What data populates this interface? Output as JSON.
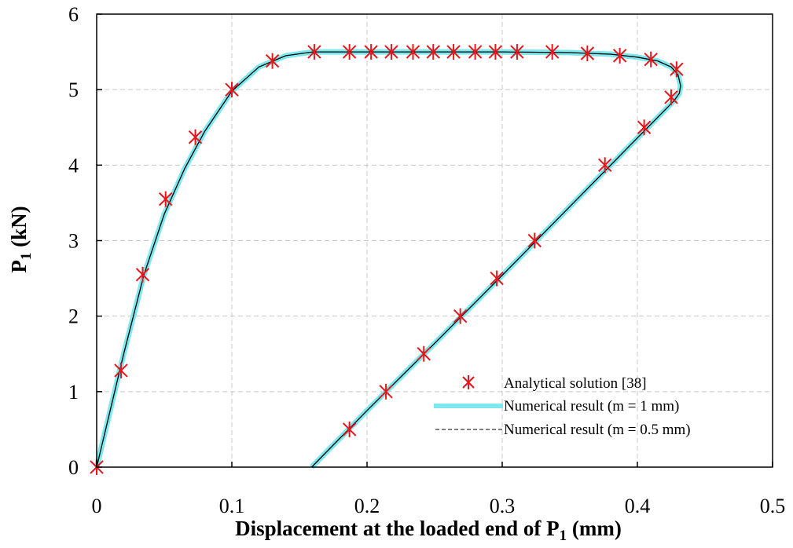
{
  "chart_data": {
    "type": "line",
    "title": "",
    "xlabel": {
      "main": "Displacement at the loaded end of P",
      "sub": "1",
      "unit": " (mm)"
    },
    "ylabel": {
      "main": "P",
      "sub": "1",
      "unit": " (kN)"
    },
    "xlim": [
      0,
      0.5
    ],
    "ylim": [
      0,
      6
    ],
    "x_ticks": [
      0,
      0.1,
      0.2,
      0.3,
      0.4,
      0.5
    ],
    "x_tick_labels": [
      "0",
      "0.1",
      "0.2",
      "0.3",
      "0.4",
      "0.5"
    ],
    "y_ticks": [
      0,
      1,
      2,
      3,
      4,
      5,
      6
    ],
    "y_tick_labels": [
      "0",
      "1",
      "2",
      "3",
      "4",
      "5",
      "6"
    ],
    "grid": true,
    "legend_position": "bottom-right",
    "series": [
      {
        "name": "Analytical solution [38]",
        "style": "markers",
        "color": "#e8161b",
        "x": [
          0.0,
          0.018,
          0.034,
          0.051,
          0.073,
          0.1,
          0.13,
          0.161,
          0.187,
          0.203,
          0.218,
          0.234,
          0.249,
          0.264,
          0.28,
          0.295,
          0.311,
          0.337,
          0.363,
          0.387,
          0.41,
          0.429,
          0.425,
          0.405,
          0.376,
          0.324,
          0.296,
          0.269,
          0.242,
          0.214,
          0.187
        ],
        "y": [
          0.0,
          1.28,
          2.55,
          3.55,
          4.37,
          5.0,
          5.38,
          5.5,
          5.5,
          5.5,
          5.5,
          5.5,
          5.5,
          5.5,
          5.5,
          5.5,
          5.5,
          5.5,
          5.48,
          5.45,
          5.4,
          5.27,
          4.9,
          4.5,
          4.0,
          3.0,
          2.5,
          2.0,
          1.5,
          1.0,
          0.5
        ]
      },
      {
        "name": "Numerical result (m = 1 mm)",
        "style": "thick-line",
        "color": "#7fe7ee",
        "x": [
          0.0,
          0.01,
          0.02,
          0.035,
          0.05,
          0.065,
          0.08,
          0.1,
          0.12,
          0.14,
          0.16,
          0.2,
          0.25,
          0.3,
          0.35,
          0.38,
          0.4,
          0.415,
          0.425,
          0.43,
          0.432,
          0.431,
          0.427,
          0.4,
          0.35,
          0.3,
          0.25,
          0.2,
          0.159
        ],
        "y": [
          0.0,
          0.75,
          1.5,
          2.55,
          3.35,
          3.95,
          4.45,
          4.98,
          5.3,
          5.45,
          5.5,
          5.5,
          5.5,
          5.5,
          5.49,
          5.47,
          5.43,
          5.38,
          5.3,
          5.2,
          5.05,
          4.95,
          4.85,
          4.36,
          3.45,
          2.54,
          1.64,
          0.75,
          0.0
        ]
      },
      {
        "name": "Numerical result (m = 0.5 mm)",
        "style": "dashed-line",
        "color": "#000000",
        "x": [
          0.0,
          0.01,
          0.02,
          0.035,
          0.05,
          0.065,
          0.08,
          0.1,
          0.12,
          0.14,
          0.16,
          0.2,
          0.25,
          0.3,
          0.35,
          0.38,
          0.4,
          0.415,
          0.425,
          0.43,
          0.432,
          0.431,
          0.427,
          0.4,
          0.35,
          0.3,
          0.25,
          0.2,
          0.159
        ],
        "y": [
          0.0,
          0.75,
          1.5,
          2.55,
          3.35,
          3.95,
          4.45,
          4.98,
          5.3,
          5.45,
          5.5,
          5.5,
          5.5,
          5.5,
          5.49,
          5.47,
          5.43,
          5.38,
          5.3,
          5.2,
          5.05,
          4.95,
          4.85,
          4.36,
          3.45,
          2.54,
          1.64,
          0.75,
          0.0
        ]
      }
    ]
  }
}
